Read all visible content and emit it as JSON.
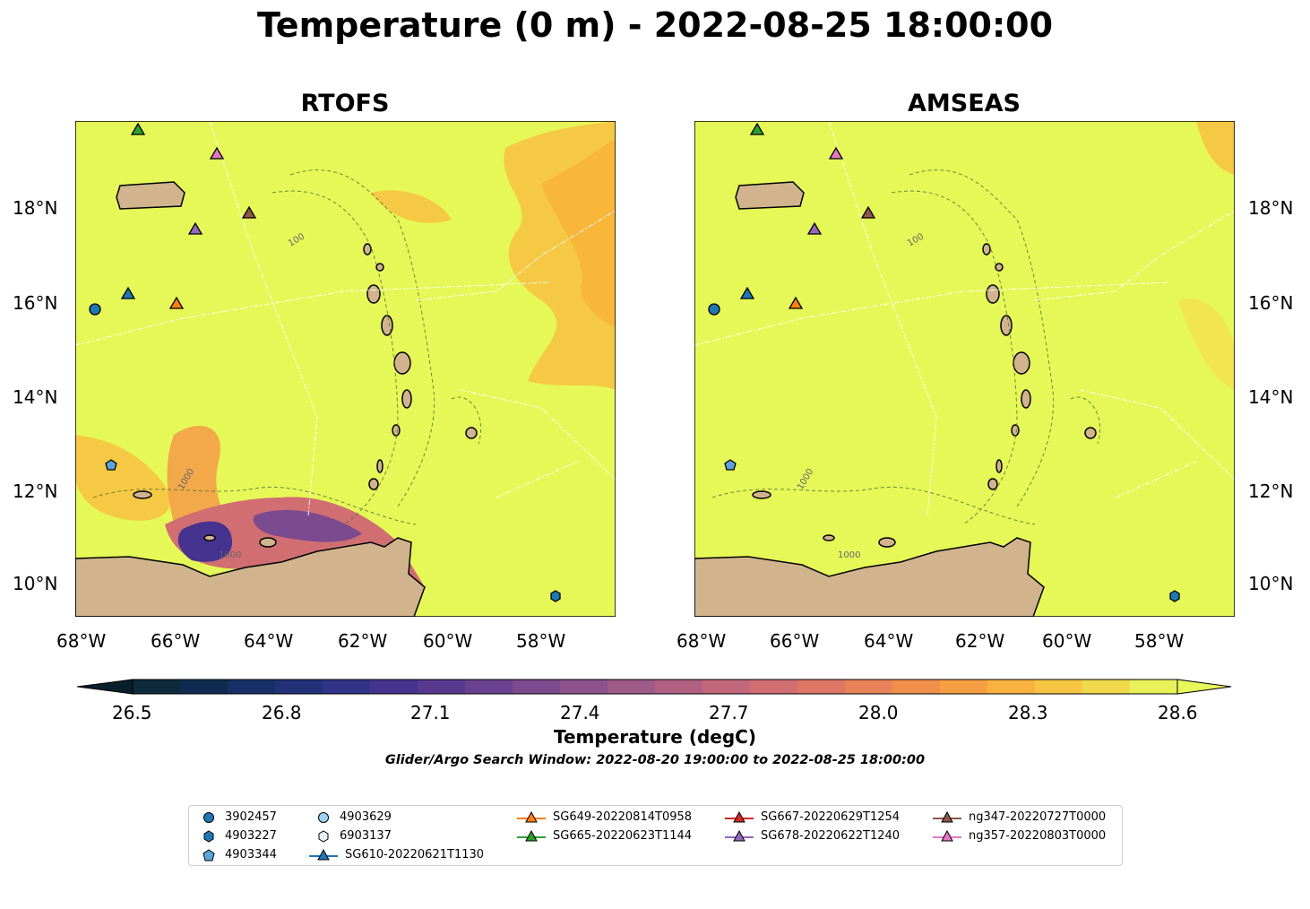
{
  "title": "Temperature (0 m) - 2022-08-25 18:00:00",
  "panels": [
    {
      "title": "RTOFS"
    },
    {
      "title": "AMSEAS"
    }
  ],
  "lon_ticks": [
    "68°W",
    "66°W",
    "64°W",
    "62°W",
    "60°W",
    "58°W"
  ],
  "lat_ticks": [
    "18°N",
    "16°N",
    "14°N",
    "12°N",
    "10°N"
  ],
  "colorbar": {
    "label": "Temperature (degC)",
    "ticks": [
      "26.5",
      "26.8",
      "27.1",
      "27.4",
      "27.7",
      "28.0",
      "28.3",
      "28.6"
    ],
    "colors": [
      "#0e2a3c",
      "#102b4f",
      "#172f66",
      "#223178",
      "#313388",
      "#45338f",
      "#573a90",
      "#6a4190",
      "#7c4a8f",
      "#8d518c",
      "#9f5a88",
      "#b16083",
      "#c2677c",
      "#d06e72",
      "#de7665",
      "#e98258",
      "#f18f4b",
      "#f69f42",
      "#f8b23f",
      "#f6c642",
      "#f0da4c",
      "#e8f05a"
    ],
    "over_color": "#e8f85a",
    "under_color": "#0b1e2c"
  },
  "search_window": "Glider/Argo Search Window: 2022-08-20 19:00:00 to 2022-08-25 18:00:00",
  "contour_labels": [
    "100",
    "1000"
  ],
  "colors": {
    "ocean": "#e5f858",
    "land": "#d1b48d",
    "warm": "#f8b63a",
    "warm_light": "#f6c944",
    "argo": "#1f77b4",
    "argo_light": "#8ec6ee"
  },
  "legend": [
    {
      "label": "3902457",
      "marker": "circle",
      "color": "#1f77b4"
    },
    {
      "label": "4903227",
      "marker": "hexagon",
      "color": "#1f77b4"
    },
    {
      "label": "4903344",
      "marker": "pentagon",
      "color": "#5ba3d9"
    },
    {
      "label": "4903629",
      "marker": "circle",
      "color": "#9fd1f3"
    },
    {
      "label": "6903137",
      "marker": "hexagon",
      "color": "#e6f3fb"
    },
    {
      "label": "SG610-20220621T1130",
      "marker": "triangle-line",
      "color": "#1f77b4"
    },
    {
      "label": "SG649-20220814T0958",
      "marker": "triangle-line",
      "color": "#ff7f0e"
    },
    {
      "label": "SG665-20220623T1144",
      "marker": "triangle-line",
      "color": "#2ca02c"
    },
    {
      "label": "SG667-20220629T1254",
      "marker": "triangle-line",
      "color": "#d62728"
    },
    {
      "label": "SG678-20220622T1240",
      "marker": "triangle-line",
      "color": "#9467bd"
    },
    {
      "label": "ng347-20220727T0000",
      "marker": "triangle-line",
      "color": "#8c564b"
    },
    {
      "label": "ng357-20220803T0000",
      "marker": "triangle-line",
      "color": "#e377c2"
    }
  ]
}
